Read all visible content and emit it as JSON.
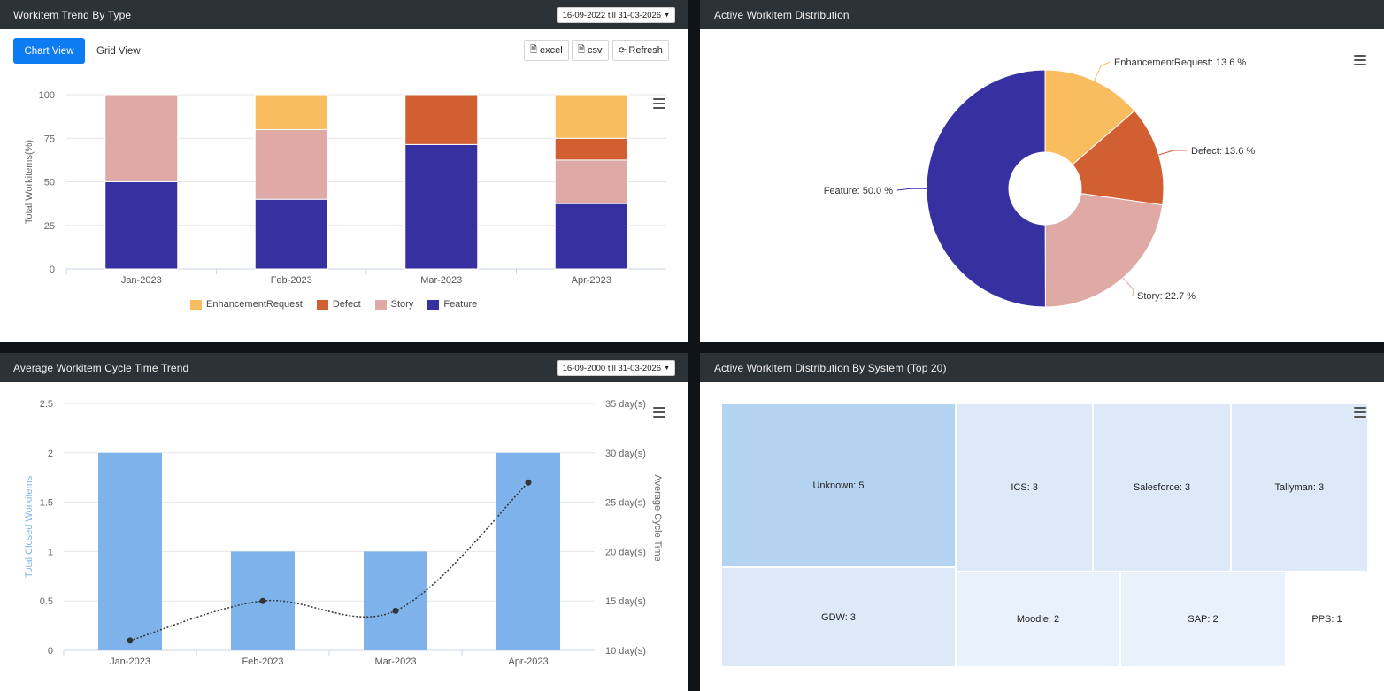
{
  "panels": {
    "trend_by_type": {
      "title": "Workitem Trend By Type",
      "date_range": "16-09-2022 till 31-03-2026",
      "chart_view_label": "Chart View",
      "grid_view_label": "Grid View",
      "excel_label": "excel",
      "csv_label": "csv",
      "refresh_label": "Refresh"
    },
    "active_distribution": {
      "title": "Active Workitem Distribution"
    },
    "cycle_time": {
      "title": "Average Workitem Cycle Time Trend",
      "date_range": "16-09-2000 till 31-03-2026"
    },
    "by_system": {
      "title": "Active Workitem Distribution By System (Top 20)"
    }
  },
  "icons": {
    "excel": "file-excel-icon",
    "csv": "file-csv-icon",
    "refresh": "refresh-icon",
    "menu": "hamburger-menu-icon",
    "caret": "caret-down-icon"
  },
  "chart_data": [
    {
      "type": "bar",
      "stacked": true,
      "percent": true,
      "categories": [
        "Jan-2023",
        "Feb-2023",
        "Mar-2023",
        "Apr-2023"
      ],
      "series": [
        {
          "name": "Feature",
          "color": "#3730a0",
          "values": [
            50,
            40,
            71.4,
            37.5
          ]
        },
        {
          "name": "Story",
          "color": "#dfaaa5",
          "values": [
            50,
            40,
            0,
            25
          ]
        },
        {
          "name": "Defect",
          "color": "#d15f31",
          "values": [
            0,
            0,
            28.6,
            12.5
          ]
        },
        {
          "name": "EnhancementRequest",
          "color": "#f9bd5f",
          "values": [
            0,
            20,
            0,
            25
          ]
        }
      ],
      "legend_order": [
        "EnhancementRequest",
        "Defect",
        "Story",
        "Feature"
      ],
      "ylabel": "Total Workitems(%)",
      "yticks": [
        "0",
        "25",
        "50",
        "75",
        "100"
      ],
      "ylim": [
        0,
        100
      ],
      "grid": true,
      "legend": "bottom"
    },
    {
      "type": "pie",
      "donut": true,
      "slices": [
        {
          "name": "EnhancementRequest",
          "value": 13.6,
          "label": "EnhancementRequest: 13.6 %",
          "color": "#f9bd5f"
        },
        {
          "name": "Defect",
          "value": 13.6,
          "label": "Defect: 13.6 %",
          "color": "#d15f31"
        },
        {
          "name": "Story",
          "value": 22.7,
          "label": "Story: 22.7 %",
          "color": "#dfaaa5"
        },
        {
          "name": "Feature",
          "value": 50.0,
          "label": "Feature: 50.0 %",
          "color": "#3730a0"
        }
      ]
    },
    {
      "type": "bar",
      "combo": "bar+line",
      "categories": [
        "Jan-2023",
        "Feb-2023",
        "Mar-2023",
        "Apr-2023"
      ],
      "bar_series": {
        "values": [
          2,
          1,
          1,
          2
        ],
        "color": "#7eb2ea"
      },
      "line_series": {
        "values": [
          11,
          15,
          14,
          27
        ],
        "color": "#333333"
      },
      "ylabel": "Total Closed Workitems",
      "ylabel_color": "#7eb2ea",
      "y2label": "Average Cycle Time",
      "yticks": [
        "0",
        "0.5",
        "1",
        "1.5",
        "2",
        "2.5"
      ],
      "ylim": [
        0,
        2.5
      ],
      "y2ticks": [
        "10 day(s)",
        "15 day(s)",
        "20 day(s)",
        "25 day(s)",
        "30 day(s)",
        "35 day(s)"
      ],
      "y2lim": [
        10,
        35
      ],
      "grid": true
    },
    {
      "type": "treemap",
      "items": [
        {
          "name": "Unknown",
          "value": 5,
          "label": "Unknown: 5",
          "color": "#b3d3f1"
        },
        {
          "name": "ICS",
          "value": 3,
          "label": "ICS: 3",
          "color": "#dde9f8"
        },
        {
          "name": "Salesforce",
          "value": 3,
          "label": "Salesforce: 3",
          "color": "#dde9f8"
        },
        {
          "name": "Tallyman",
          "value": 3,
          "label": "Tallyman: 3",
          "color": "#dde9f8"
        },
        {
          "name": "GDW",
          "value": 3,
          "label": "GDW: 3",
          "color": "#dde9f8"
        },
        {
          "name": "Moodle",
          "value": 2,
          "label": "Moodle: 2",
          "color": "#e9f1fb"
        },
        {
          "name": "SAP",
          "value": 2,
          "label": "SAP: 2",
          "color": "#e9f1fb"
        },
        {
          "name": "PPS",
          "value": 1,
          "label": "PPS: 1",
          "color": "#ffffff"
        }
      ]
    }
  ]
}
